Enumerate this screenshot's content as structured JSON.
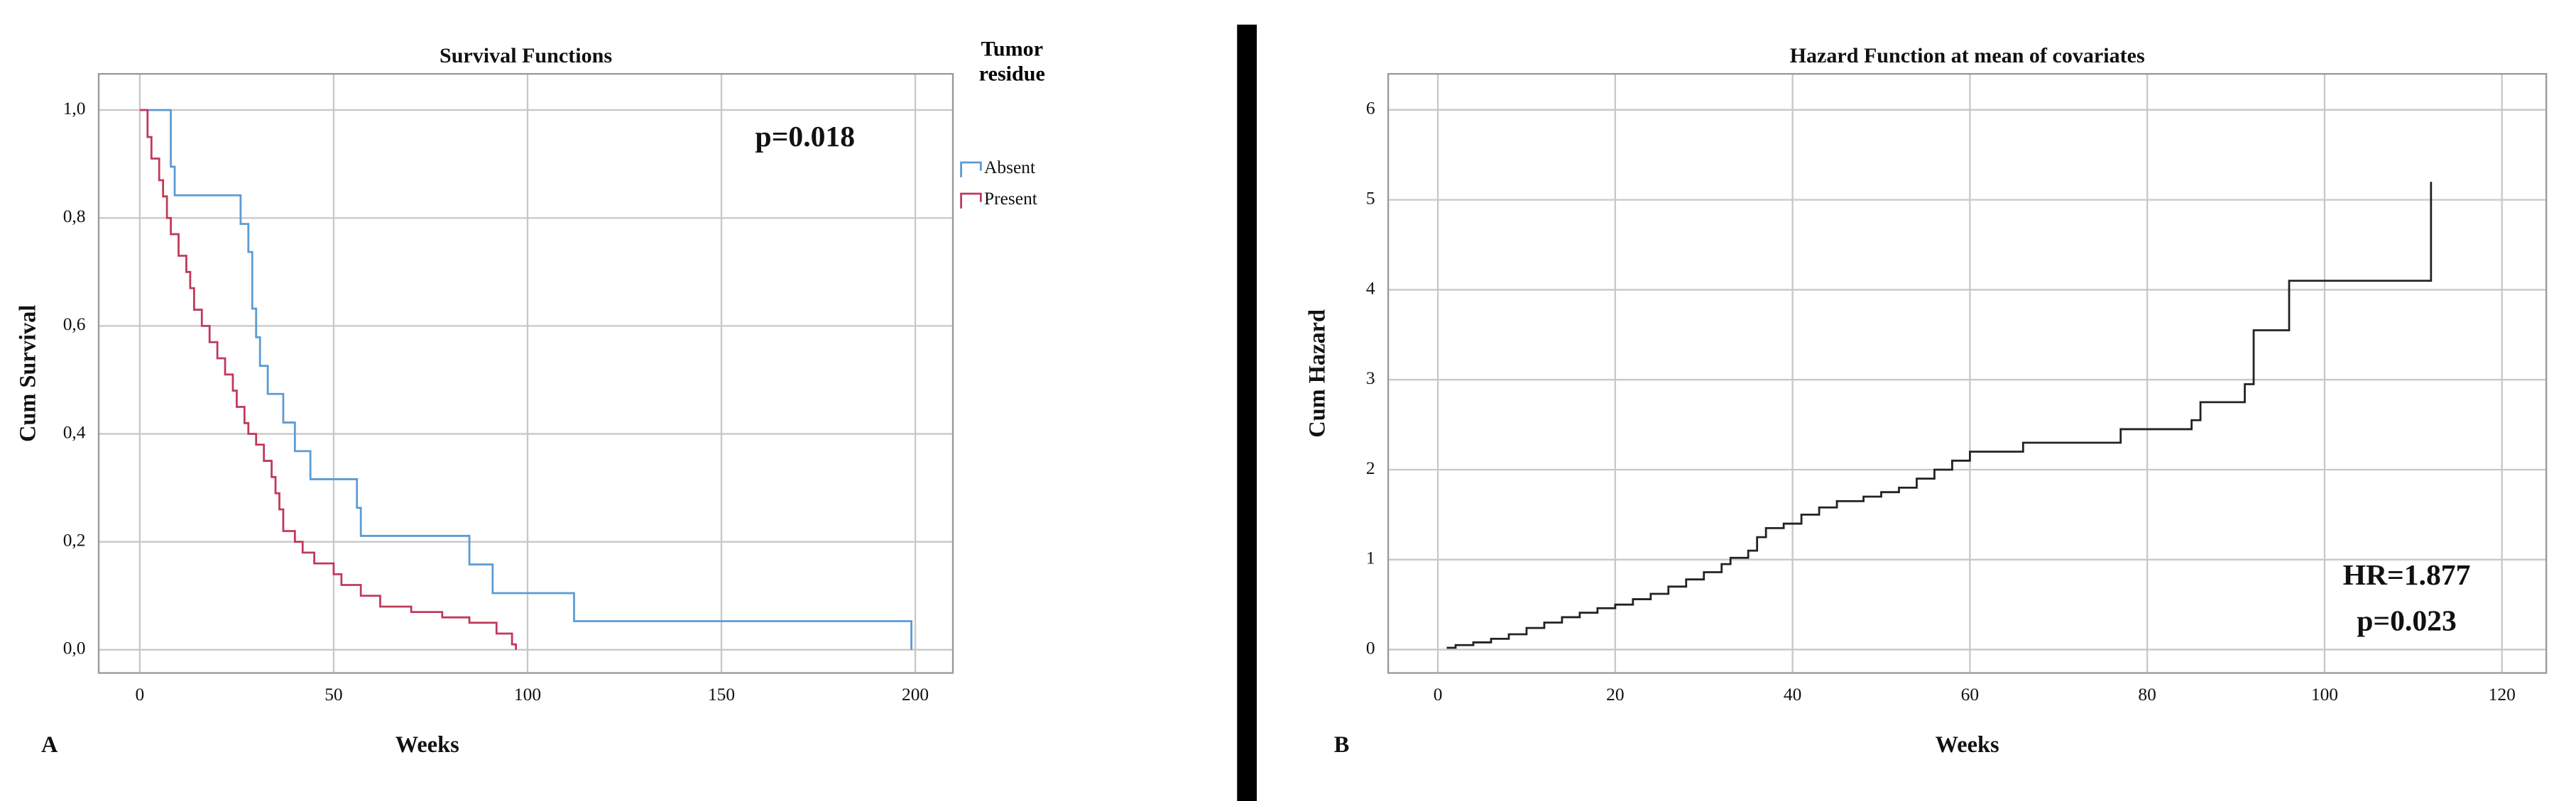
{
  "chart_data": [
    {
      "type": "step",
      "panel_label": "A",
      "title": "Survival Functions",
      "x_label": "Weeks",
      "y_label": "Cum Survival",
      "annotations": [
        "p=0.018"
      ],
      "legend_title": "Tumor residue",
      "grid": true,
      "xlim": [
        -10.6,
        209.7
      ],
      "ylim": [
        -0.043,
        1.067
      ],
      "xticks": [
        0,
        50,
        100,
        150,
        200
      ],
      "yticks": [
        {
          "value": 0,
          "label": "0,0"
        },
        {
          "value": 0.2,
          "label": "0,2"
        },
        {
          "value": 0.4,
          "label": "0,4"
        },
        {
          "value": 0.6,
          "label": "0,6"
        },
        {
          "value": 0.8,
          "label": "0,8"
        },
        {
          "value": 1,
          "label": "1,0"
        }
      ],
      "series": [
        {
          "name": "Absent",
          "color": "#5b9bd5",
          "x": [
            0,
            8,
            9,
            26,
            28,
            29,
            30,
            31,
            33,
            37,
            40,
            44,
            56,
            57,
            85,
            91,
            112,
            199
          ],
          "values": [
            1.0,
            0.895,
            0.842,
            0.789,
            0.737,
            0.632,
            0.579,
            0.526,
            0.474,
            0.421,
            0.368,
            0.316,
            0.263,
            0.211,
            0.158,
            0.105,
            0.053,
            0.0
          ]
        },
        {
          "name": "Present",
          "color": "#c0395a",
          "x": [
            0,
            2,
            3,
            5,
            6,
            7,
            8,
            10,
            12,
            13,
            14,
            16,
            18,
            20,
            22,
            24,
            25,
            27,
            28,
            30,
            32,
            34,
            35,
            36,
            37,
            40,
            42,
            45,
            50,
            52,
            57,
            62,
            70,
            78,
            85,
            92,
            96,
            97
          ],
          "values": [
            1.0,
            0.95,
            0.91,
            0.87,
            0.84,
            0.8,
            0.77,
            0.73,
            0.7,
            0.67,
            0.63,
            0.6,
            0.57,
            0.54,
            0.51,
            0.48,
            0.45,
            0.42,
            0.4,
            0.38,
            0.35,
            0.32,
            0.29,
            0.26,
            0.22,
            0.2,
            0.18,
            0.16,
            0.14,
            0.12,
            0.1,
            0.08,
            0.07,
            0.06,
            0.05,
            0.03,
            0.01,
            0.0
          ]
        }
      ]
    },
    {
      "type": "step",
      "panel_label": "B",
      "title": "Hazard Function at mean of covariates",
      "x_label": "Weeks",
      "y_label": "Cum Hazard",
      "annotations": [
        "HR=1.877",
        "p=0.023"
      ],
      "grid": true,
      "xlim": [
        -5.6,
        125
      ],
      "ylim": [
        -0.26,
        6.4
      ],
      "xticks": [
        0,
        20,
        40,
        60,
        80,
        100,
        120
      ],
      "yticks": [
        0,
        1,
        2,
        3,
        4,
        5,
        6
      ],
      "series": [
        {
          "color": "#222222",
          "x": [
            1,
            2,
            4,
            6,
            8,
            10,
            12,
            14,
            16,
            18,
            20,
            22,
            24,
            26,
            28,
            30,
            32,
            33,
            35,
            36,
            37,
            39,
            41,
            43,
            45,
            48,
            50,
            52,
            54,
            56,
            58,
            60,
            66,
            77,
            85,
            86,
            91,
            92,
            96,
            112
          ],
          "values": [
            0.02,
            0.05,
            0.08,
            0.12,
            0.17,
            0.24,
            0.3,
            0.36,
            0.41,
            0.46,
            0.5,
            0.56,
            0.62,
            0.7,
            0.78,
            0.86,
            0.95,
            1.02,
            1.1,
            1.25,
            1.35,
            1.4,
            1.5,
            1.58,
            1.65,
            1.7,
            1.75,
            1.8,
            1.9,
            2.0,
            2.1,
            2.2,
            2.3,
            2.45,
            2.55,
            2.75,
            2.95,
            3.55,
            4.1,
            5.2
          ]
        }
      ]
    }
  ]
}
